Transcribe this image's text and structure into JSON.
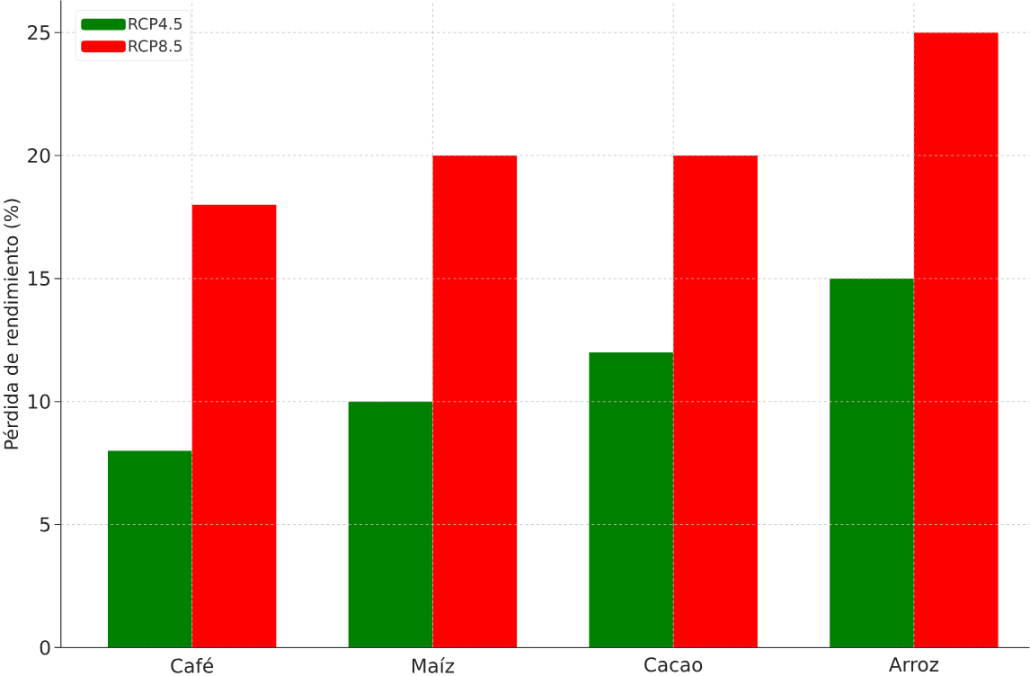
{
  "chart_data": {
    "type": "bar",
    "ylabel": "Pérdida de rendimiento (%)",
    "categories": [
      "Café",
      "Maíz",
      "Cacao",
      "Arroz"
    ],
    "series": [
      {
        "name": "RCP4.5",
        "color": "#008000",
        "values": [
          8,
          10,
          12,
          15
        ]
      },
      {
        "name": "RCP8.5",
        "color": "#ff0000",
        "values": [
          18,
          20,
          20,
          25
        ]
      }
    ],
    "ylim": [
      0,
      26.3
    ],
    "yticks": [
      0,
      5,
      10,
      15,
      20,
      25
    ],
    "grid": true,
    "legend": "top left"
  }
}
